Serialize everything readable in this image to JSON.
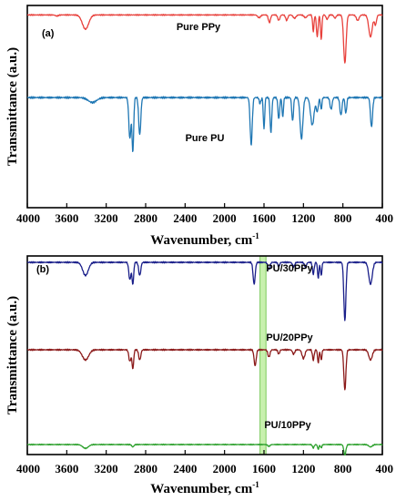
{
  "chart_data": [
    {
      "type": "line",
      "panel_label": "(a)",
      "xlabel": "Wavenumber, cm",
      "xlabel_sup": "-1",
      "ylabel": "Transmittance (a.u.)",
      "xlim": [
        4000,
        400
      ],
      "x_reversed": true,
      "xticks": [
        4000,
        3600,
        3200,
        2800,
        2400,
        2000,
        1600,
        1200,
        800,
        400
      ],
      "grid": false,
      "series": [
        {
          "name": "Pure PPy",
          "color": "#e8413c",
          "baseline": 0.96,
          "peaks": [
            [
              3700,
              0.02,
              20
            ],
            [
              3410,
              0.26,
              45
            ],
            [
              1650,
              0.05,
              20
            ],
            [
              1545,
              0.14,
              15
            ],
            [
              1450,
              0.1,
              15
            ],
            [
              1370,
              0.1,
              15
            ],
            [
              1290,
              0.06,
              20
            ],
            [
              1180,
              0.05,
              20
            ],
            [
              1100,
              0.3,
              10
            ],
            [
              1060,
              0.4,
              12
            ],
            [
              1020,
              0.45,
              10
            ],
            [
              960,
              0.08,
              15
            ],
            [
              880,
              0.06,
              15
            ],
            [
              780,
              0.88,
              18
            ],
            [
              650,
              0.1,
              20
            ],
            [
              520,
              0.4,
              25
            ],
            [
              470,
              0.18,
              15
            ]
          ]
        },
        {
          "name": "Pure PU",
          "color": "#1f77b4",
          "baseline": 0.86,
          "peaks": [
            [
              3340,
              0.05,
              60
            ],
            [
              2960,
              0.42,
              15
            ],
            [
              2930,
              0.55,
              12
            ],
            [
              2860,
              0.38,
              15
            ],
            [
              1730,
              0.48,
              15
            ],
            [
              1640,
              0.06,
              12
            ],
            [
              1600,
              0.32,
              10
            ],
            [
              1530,
              0.36,
              12
            ],
            [
              1450,
              0.22,
              12
            ],
            [
              1410,
              0.2,
              10
            ],
            [
              1310,
              0.24,
              12
            ],
            [
              1220,
              0.42,
              20
            ],
            [
              1110,
              0.28,
              25
            ],
            [
              1060,
              0.14,
              15
            ],
            [
              1020,
              0.12,
              10
            ],
            [
              920,
              0.12,
              15
            ],
            [
              820,
              0.18,
              15
            ],
            [
              770,
              0.16,
              12
            ],
            [
              510,
              0.3,
              15
            ]
          ]
        }
      ]
    },
    {
      "type": "line",
      "panel_label": "(b)",
      "xlabel": "Wavenumber, cm",
      "xlabel_sup": "-1",
      "ylabel": "Transmittance (a.u.)",
      "xlim": [
        4000,
        400
      ],
      "x_reversed": true,
      "xticks": [
        4000,
        3600,
        3200,
        2800,
        2400,
        2000,
        1600,
        1200,
        800,
        400
      ],
      "grid": false,
      "highlight_band": [
        1640,
        1580
      ],
      "highlight_color": "#9be36b",
      "series": [
        {
          "name": "PU/30PPy",
          "color": "#1a1f8a",
          "baseline": 0.95,
          "peaks": [
            [
              3410,
              0.18,
              40
            ],
            [
              2960,
              0.24,
              15
            ],
            [
              2930,
              0.3,
              12
            ],
            [
              2860,
              0.18,
              15
            ],
            [
              1700,
              0.3,
              15
            ],
            [
              1550,
              0.1,
              15
            ],
            [
              1450,
              0.06,
              12
            ],
            [
              1300,
              0.06,
              15
            ],
            [
              1180,
              0.06,
              15
            ],
            [
              1100,
              0.16,
              12
            ],
            [
              1050,
              0.22,
              10
            ],
            [
              1020,
              0.18,
              10
            ],
            [
              780,
              0.8,
              15
            ],
            [
              520,
              0.3,
              25
            ]
          ]
        },
        {
          "name": "PU/20PPy",
          "color": "#8b1a1a",
          "baseline": 0.6,
          "peaks": [
            [
              3410,
              0.14,
              45
            ],
            [
              2960,
              0.16,
              15
            ],
            [
              2930,
              0.26,
              12
            ],
            [
              2860,
              0.14,
              15
            ],
            [
              1690,
              0.22,
              15
            ],
            [
              1550,
              0.1,
              15
            ],
            [
              1450,
              0.06,
              12
            ],
            [
              1300,
              0.06,
              15
            ],
            [
              1200,
              0.12,
              20
            ],
            [
              1100,
              0.14,
              12
            ],
            [
              1050,
              0.18,
              10
            ],
            [
              1020,
              0.14,
              10
            ],
            [
              780,
              0.55,
              15
            ],
            [
              520,
              0.14,
              25
            ]
          ]
        },
        {
          "name": "PU/10PPy",
          "color": "#2ca02c",
          "baseline": 0.23,
          "peaks": [
            [
              3410,
              0.08,
              40
            ],
            [
              2930,
              0.05,
              15
            ],
            [
              1550,
              0.04,
              15
            ],
            [
              1100,
              0.07,
              12
            ],
            [
              1050,
              0.1,
              10
            ],
            [
              1020,
              0.07,
              10
            ],
            [
              780,
              0.22,
              15
            ],
            [
              520,
              0.05,
              25
            ]
          ]
        }
      ]
    }
  ]
}
